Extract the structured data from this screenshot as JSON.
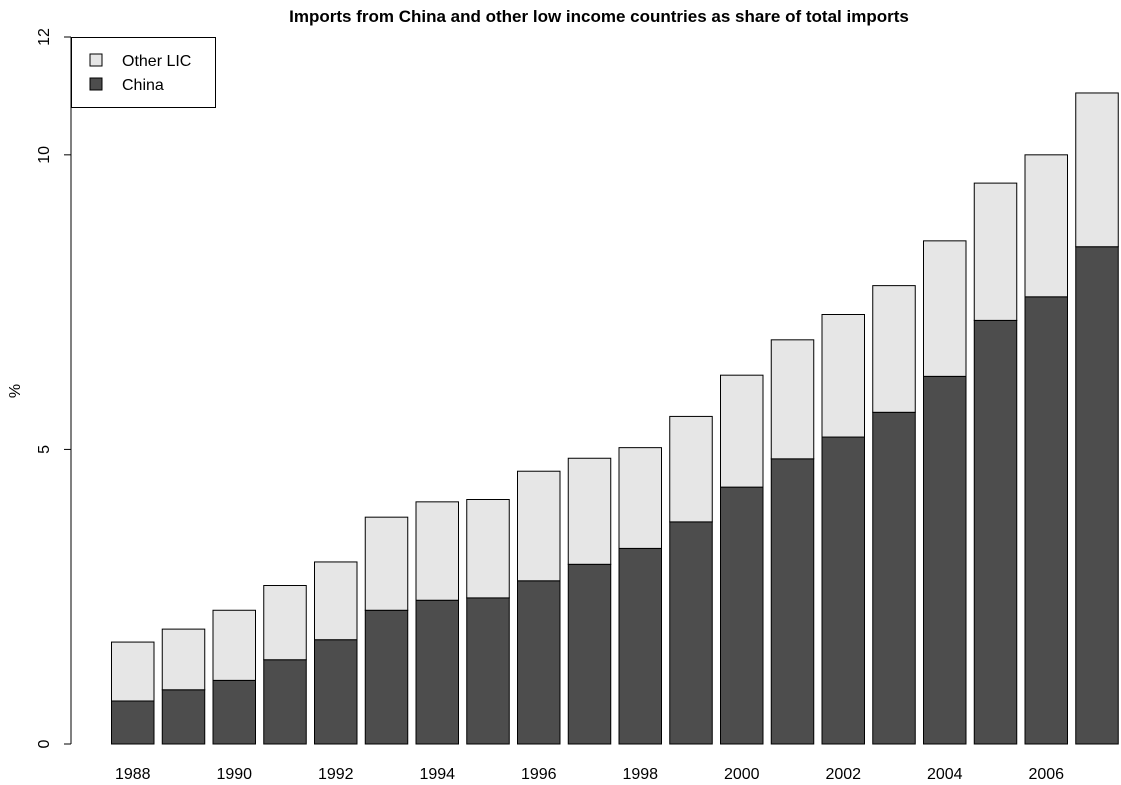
{
  "chart_data": {
    "type": "bar",
    "stacked": true,
    "title": "Imports from China and other low income countries as share of total imports",
    "xlabel": "",
    "ylabel": "%",
    "ylim": [
      0,
      12
    ],
    "yticks": [
      0,
      5,
      10
    ],
    "categories": [
      "1988",
      "1989",
      "1990",
      "1991",
      "1992",
      "1993",
      "1994",
      "1995",
      "1996",
      "1997",
      "1998",
      "1999",
      "2000",
      "2001",
      "2002",
      "2003",
      "2004",
      "2005",
      "2006",
      "2007"
    ],
    "xtick_labels": [
      "1988",
      "",
      "1990",
      "",
      "1992",
      "",
      "1994",
      "",
      "1996",
      "",
      "1998",
      "",
      "2000",
      "",
      "2002",
      "",
      "2004",
      "",
      "2006",
      ""
    ],
    "series": [
      {
        "name": "China",
        "color": "#4d4d4d",
        "values": [
          0.73,
          0.92,
          1.08,
          1.43,
          1.77,
          2.27,
          2.44,
          2.48,
          2.77,
          3.05,
          3.32,
          3.77,
          4.36,
          4.84,
          5.21,
          5.63,
          6.24,
          7.19,
          7.59,
          8.44
        ]
      },
      {
        "name": "Other LIC",
        "color": "#e6e6e6",
        "values": [
          1.0,
          1.03,
          1.19,
          1.26,
          1.32,
          1.58,
          1.67,
          1.67,
          1.86,
          1.8,
          1.71,
          1.79,
          1.9,
          2.02,
          2.08,
          2.15,
          2.3,
          2.33,
          2.41,
          2.61
        ]
      }
    ],
    "legend": {
      "position": "top-left",
      "entries": [
        {
          "name": "Other LIC",
          "color": "#e6e6e6"
        },
        {
          "name": "China",
          "color": "#4d4d4d"
        }
      ]
    },
    "grid": false
  }
}
